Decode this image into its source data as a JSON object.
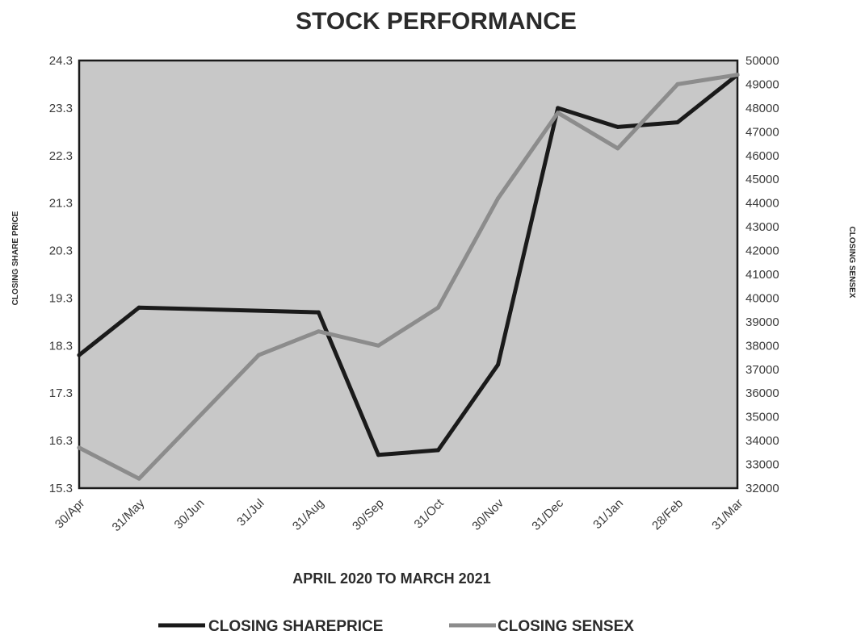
{
  "chart_data": {
    "type": "line",
    "title": "STOCK PERFORMANCE",
    "xlabel": "APRIL 2020 TO MARCH 2021",
    "ylabel_left": "CLOSING SHARE PRICE",
    "ylabel_right": "CLOSING SENSEX",
    "categories": [
      "30/Apr",
      "31/May",
      "30/Jun",
      "31/Jul",
      "31/Aug",
      "30/Sep",
      "31/Oct",
      "30/Nov",
      "31/Dec",
      "31/Jan",
      "28/Feb",
      "31/Mar"
    ],
    "left_axis": {
      "ylim": [
        15.3,
        24.3
      ],
      "ticks": [
        "15.3",
        "16.3",
        "17.3",
        "18.3",
        "19.3",
        "20.3",
        "21.3",
        "22.3",
        "23.3",
        "24.3"
      ]
    },
    "right_axis": {
      "ylim": [
        32000,
        50000
      ],
      "ticks": [
        "32000",
        "33000",
        "34000",
        "35000",
        "36000",
        "37000",
        "38000",
        "39000",
        "40000",
        "41000",
        "42000",
        "43000",
        "44000",
        "45000",
        "46000",
        "47000",
        "48000",
        "49000",
        "50000"
      ]
    },
    "series": [
      {
        "name": "CLOSING SHAREPRICE",
        "axis": "left",
        "color": "#1a1a1a",
        "points": [
          {
            "x": "30/Apr",
            "y": 18.1
          },
          {
            "x": "31/May",
            "y": 19.1
          },
          {
            "x": "31/Aug",
            "y": 19.0
          },
          {
            "x": "30/Sep",
            "y": 16.0
          },
          {
            "x": "31/Oct",
            "y": 16.1
          },
          {
            "x": "30/Nov",
            "y": 17.9
          },
          {
            "x": "31/Dec",
            "y": 23.3
          },
          {
            "x": "31/Jan",
            "y": 22.9
          },
          {
            "x": "28/Feb",
            "y": 23.0
          },
          {
            "x": "31/Mar",
            "y": 24.0
          }
        ]
      },
      {
        "name": "CLOSING SENSEX",
        "axis": "right",
        "color": "#8c8c8c",
        "points": [
          {
            "x": "30/Apr",
            "y": 33700
          },
          {
            "x": "31/May",
            "y": 32400
          },
          {
            "x": "31/Jul",
            "y": 37600
          },
          {
            "x": "31/Aug",
            "y": 38600
          },
          {
            "x": "30/Sep",
            "y": 38000
          },
          {
            "x": "31/Oct",
            "y": 39600
          },
          {
            "x": "30/Nov",
            "y": 44200
          },
          {
            "x": "31/Dec",
            "y": 47800
          },
          {
            "x": "31/Jan",
            "y": 46300
          },
          {
            "x": "28/Feb",
            "y": 49000
          },
          {
            "x": "31/Mar",
            "y": 49400
          }
        ]
      }
    ],
    "plot_background": "#c8c8c8",
    "grid": false,
    "legend_position": "bottom-center"
  }
}
